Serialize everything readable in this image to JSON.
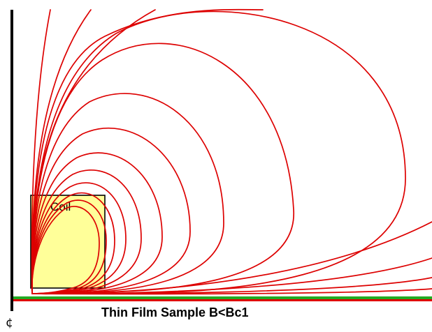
{
  "labels": {
    "coil": "Coil",
    "sample": "Thin Film Sample B<Bc1",
    "centerline_symbol": "¢"
  },
  "colors": {
    "field_lines": "#dd0000",
    "coil_fill": "#ffff99",
    "coil_outline": "#000000",
    "axis": "#000000",
    "sample_top": "#22aa22",
    "sample_bottom": "#dd0000"
  }
}
